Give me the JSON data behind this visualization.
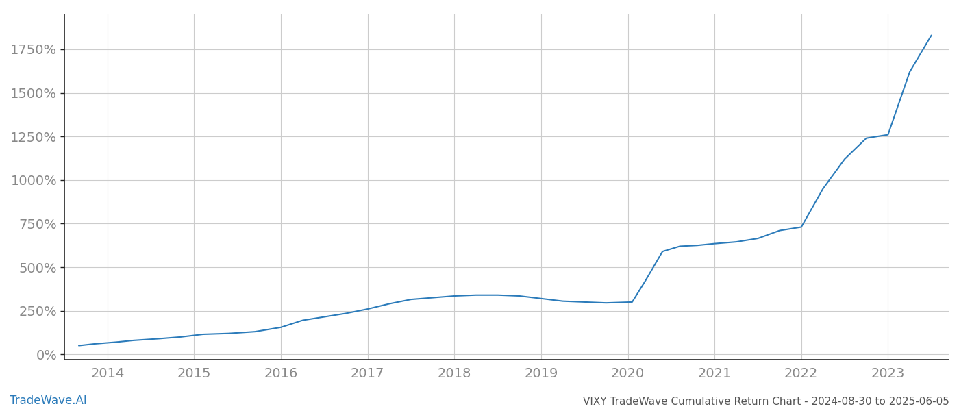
{
  "title": "",
  "footer_left": "TradeWave.AI",
  "footer_right": "VIXY TradeWave Cumulative Return Chart - 2024-08-30 to 2025-06-05",
  "line_color": "#2b7bba",
  "background_color": "#ffffff",
  "grid_color": "#cccccc",
  "x_years": [
    2014,
    2015,
    2016,
    2017,
    2018,
    2019,
    2020,
    2021,
    2022,
    2023
  ],
  "x_data": [
    2013.67,
    2013.85,
    2014.1,
    2014.3,
    2014.6,
    2014.85,
    2015.1,
    2015.4,
    2015.7,
    2016.0,
    2016.25,
    2016.5,
    2016.75,
    2017.0,
    2017.25,
    2017.5,
    2017.75,
    2018.0,
    2018.25,
    2018.5,
    2018.75,
    2019.0,
    2019.25,
    2019.5,
    2019.75,
    2020.05,
    2020.2,
    2020.4,
    2020.6,
    2020.8,
    2021.0,
    2021.25,
    2021.5,
    2021.75,
    2022.0,
    2022.25,
    2022.5,
    2022.75,
    2023.0,
    2023.25,
    2023.5
  ],
  "y_data": [
    50,
    60,
    70,
    80,
    90,
    100,
    115,
    120,
    130,
    155,
    195,
    215,
    235,
    260,
    290,
    315,
    325,
    335,
    340,
    340,
    335,
    320,
    305,
    300,
    295,
    300,
    420,
    590,
    620,
    625,
    635,
    645,
    665,
    710,
    730,
    950,
    1120,
    1240,
    1260,
    1620,
    1830
  ],
  "yticks": [
    0,
    250,
    500,
    750,
    1000,
    1250,
    1500,
    1750
  ],
  "ytick_labels": [
    "0%",
    "250%",
    "500%",
    "750%",
    "1000%",
    "1250%",
    "1500%",
    "1750%"
  ],
  "ylim": [
    -30,
    1950
  ],
  "xlim": [
    2013.5,
    2023.7
  ],
  "footer_left_color": "#2b7bba",
  "footer_right_color": "#555555",
  "tick_color": "#888888",
  "spine_color": "#222222",
  "line_width": 1.5,
  "tick_fontsize": 14
}
